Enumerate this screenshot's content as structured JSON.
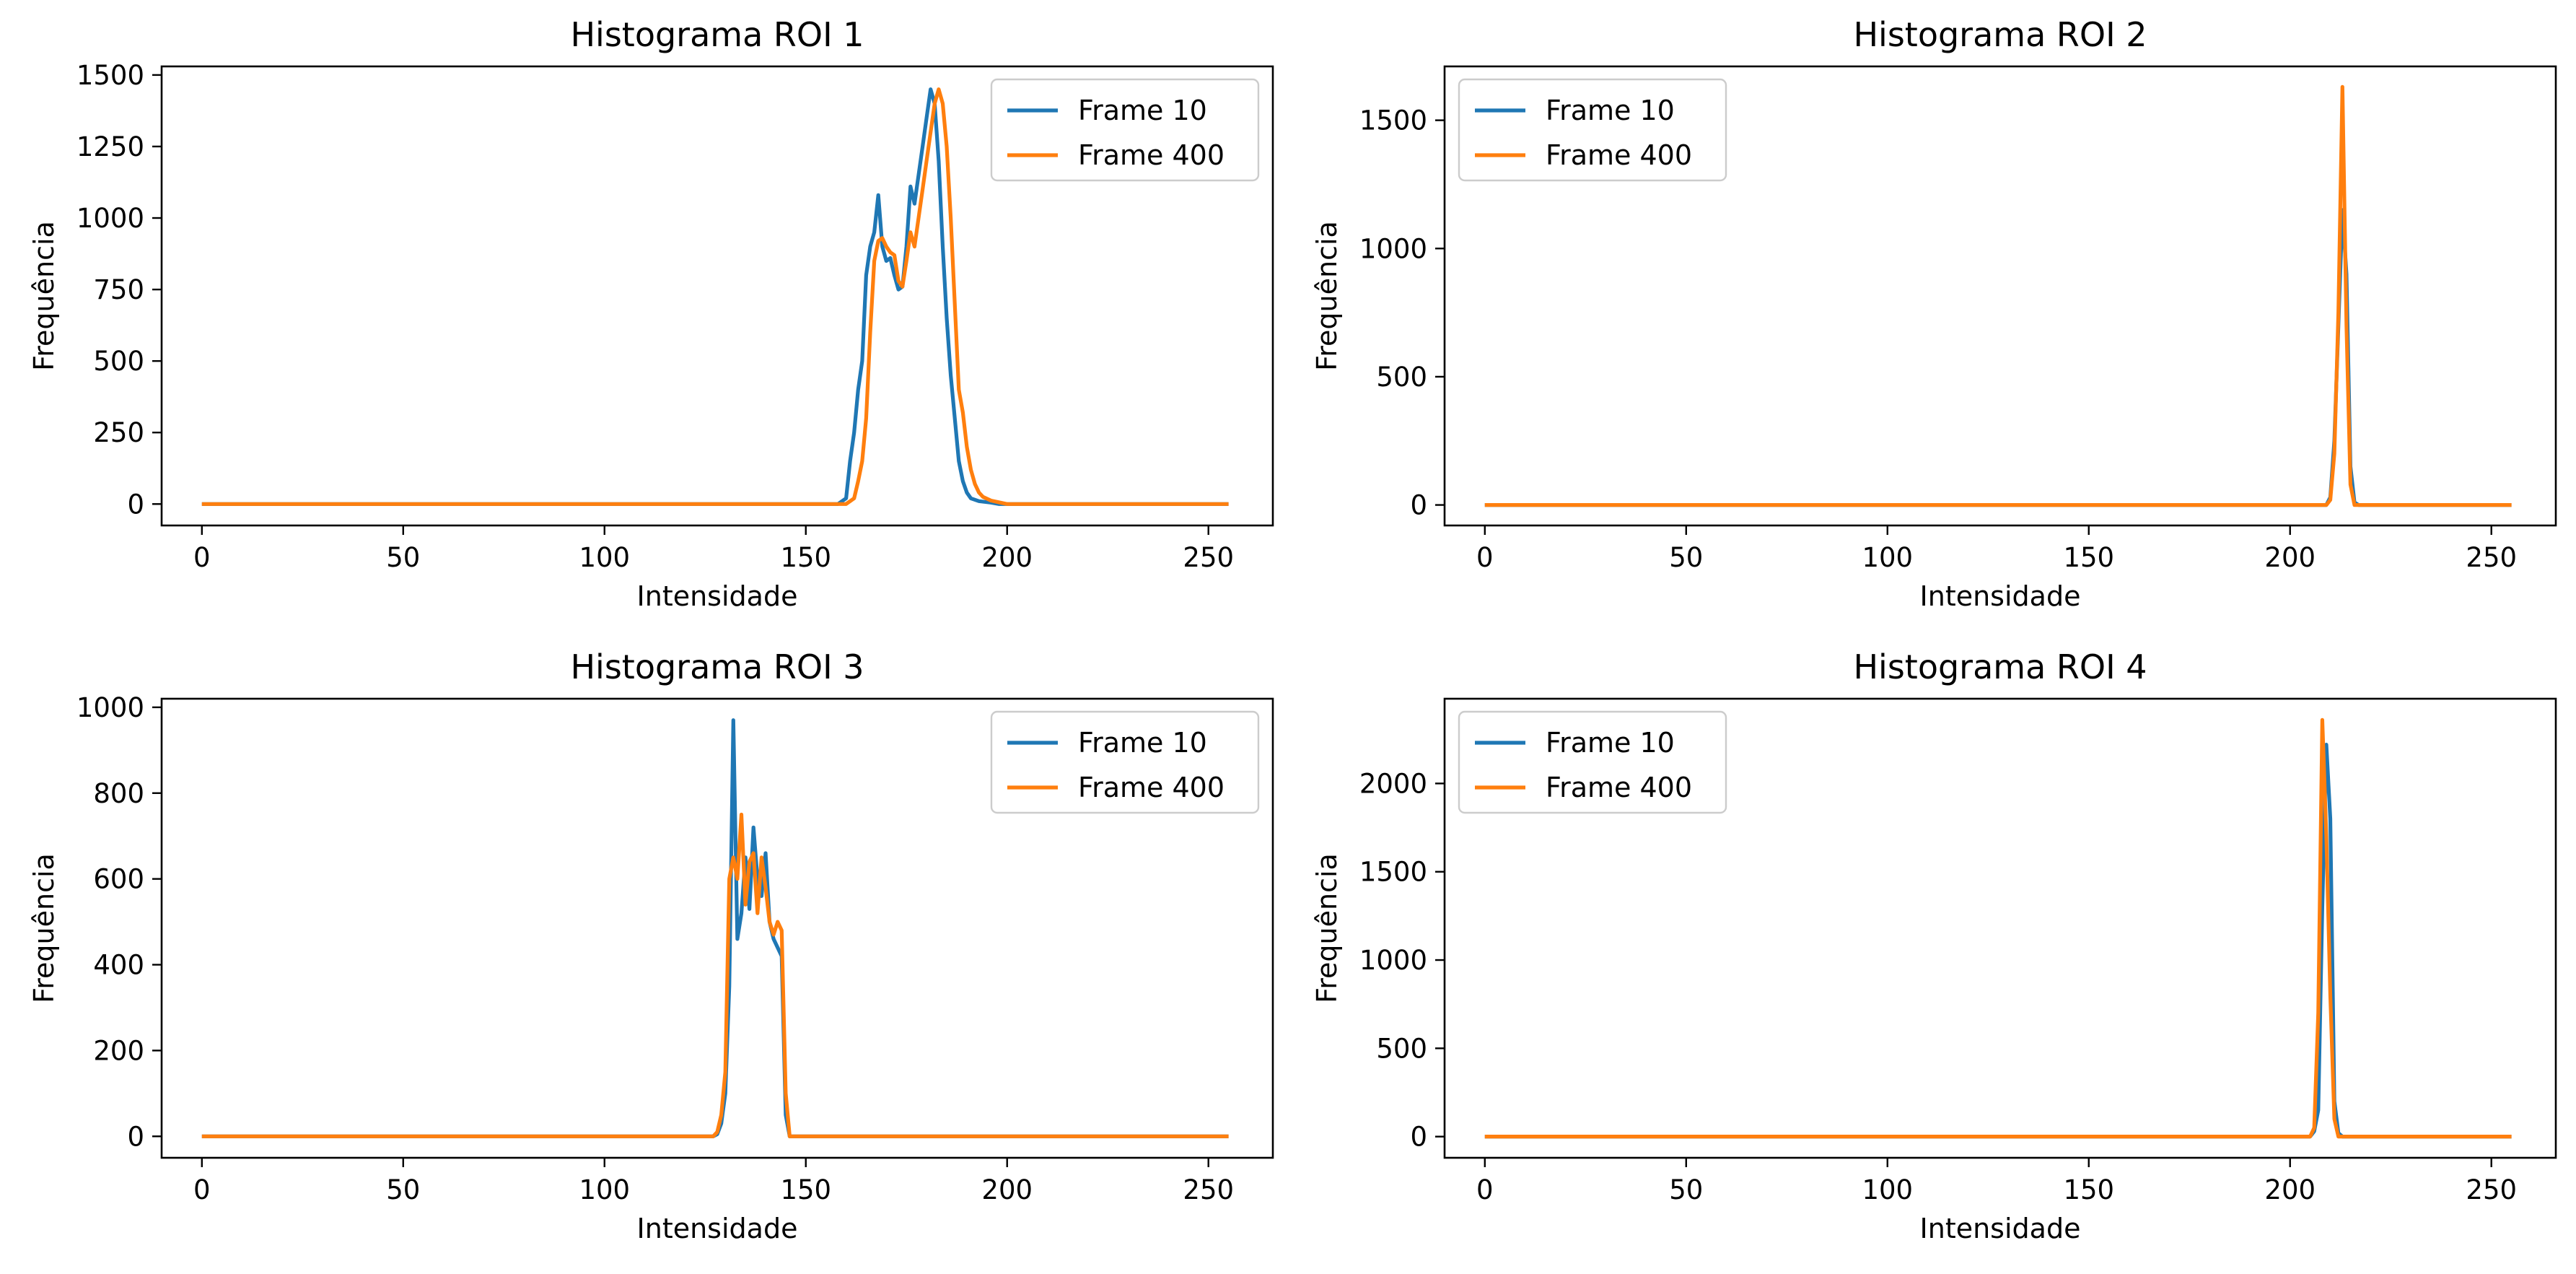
{
  "colors": {
    "frame10": "#1f77b4",
    "frame400": "#ff7f0e",
    "axes": "#000000",
    "legend_border": "#cccccc"
  },
  "chart_data": [
    {
      "type": "line",
      "title": "Histograma ROI 1",
      "xlabel": "Intensidade",
      "ylabel": "Frequência",
      "xlim": [
        -10,
        266
      ],
      "ylim": [
        -75,
        1530
      ],
      "xticks": [
        0,
        50,
        100,
        150,
        200,
        250
      ],
      "yticks": [
        0,
        250,
        500,
        750,
        1000,
        1250,
        1500
      ],
      "legend_position": "top-right",
      "series": [
        {
          "name": "Frame 10",
          "color": "#1f77b4",
          "points": [
            [
              0,
              0
            ],
            [
              158,
              0
            ],
            [
              160,
              20
            ],
            [
              161,
              150
            ],
            [
              162,
              250
            ],
            [
              163,
              400
            ],
            [
              164,
              500
            ],
            [
              165,
              800
            ],
            [
              166,
              900
            ],
            [
              167,
              950
            ],
            [
              168,
              1080
            ],
            [
              169,
              900
            ],
            [
              170,
              850
            ],
            [
              171,
              860
            ],
            [
              172,
              800
            ],
            [
              173,
              750
            ],
            [
              174,
              760
            ],
            [
              175,
              900
            ],
            [
              176,
              1110
            ],
            [
              177,
              1050
            ],
            [
              178,
              1150
            ],
            [
              179,
              1250
            ],
            [
              180,
              1350
            ],
            [
              181,
              1450
            ],
            [
              182,
              1400
            ],
            [
              183,
              1200
            ],
            [
              184,
              900
            ],
            [
              185,
              650
            ],
            [
              186,
              450
            ],
            [
              187,
              300
            ],
            [
              188,
              150
            ],
            [
              189,
              80
            ],
            [
              190,
              40
            ],
            [
              191,
              20
            ],
            [
              193,
              10
            ],
            [
              196,
              5
            ],
            [
              198,
              0
            ],
            [
              255,
              0
            ]
          ]
        },
        {
          "name": "Frame 400",
          "color": "#ff7f0e",
          "points": [
            [
              0,
              0
            ],
            [
              160,
              0
            ],
            [
              162,
              20
            ],
            [
              163,
              80
            ],
            [
              164,
              150
            ],
            [
              165,
              300
            ],
            [
              166,
              600
            ],
            [
              167,
              850
            ],
            [
              168,
              920
            ],
            [
              169,
              930
            ],
            [
              170,
              900
            ],
            [
              171,
              880
            ],
            [
              172,
              870
            ],
            [
              173,
              780
            ],
            [
              174,
              760
            ],
            [
              175,
              850
            ],
            [
              176,
              950
            ],
            [
              177,
              900
            ],
            [
              178,
              1000
            ],
            [
              179,
              1100
            ],
            [
              180,
              1200
            ],
            [
              181,
              1300
            ],
            [
              182,
              1400
            ],
            [
              183,
              1450
            ],
            [
              184,
              1400
            ],
            [
              185,
              1250
            ],
            [
              186,
              1000
            ],
            [
              187,
              700
            ],
            [
              188,
              400
            ],
            [
              189,
              320
            ],
            [
              190,
              200
            ],
            [
              191,
              120
            ],
            [
              192,
              70
            ],
            [
              193,
              40
            ],
            [
              194,
              25
            ],
            [
              196,
              12
            ],
            [
              198,
              6
            ],
            [
              200,
              0
            ],
            [
              255,
              0
            ]
          ]
        }
      ]
    },
    {
      "type": "line",
      "title": "Histograma ROI 2",
      "xlabel": "Intensidade",
      "ylabel": "Frequência",
      "xlim": [
        -10,
        266
      ],
      "ylim": [
        -80,
        1710
      ],
      "xticks": [
        0,
        50,
        100,
        150,
        200,
        250
      ],
      "yticks": [
        0,
        500,
        1000,
        1500
      ],
      "legend_position": "top-left",
      "series": [
        {
          "name": "Frame 10",
          "color": "#1f77b4",
          "points": [
            [
              0,
              0
            ],
            [
              209,
              0
            ],
            [
              210,
              30
            ],
            [
              211,
              250
            ],
            [
              212,
              700
            ],
            [
              213,
              1150
            ],
            [
              214,
              900
            ],
            [
              215,
              150
            ],
            [
              216,
              10
            ],
            [
              217,
              0
            ],
            [
              255,
              0
            ]
          ]
        },
        {
          "name": "Frame 400",
          "color": "#ff7f0e",
          "points": [
            [
              0,
              0
            ],
            [
              209,
              0
            ],
            [
              210,
              20
            ],
            [
              211,
              200
            ],
            [
              212,
              750
            ],
            [
              213,
              1630
            ],
            [
              214,
              700
            ],
            [
              215,
              80
            ],
            [
              216,
              0
            ],
            [
              255,
              0
            ]
          ]
        }
      ]
    },
    {
      "type": "line",
      "title": "Histograma ROI 3",
      "xlabel": "Intensidade",
      "ylabel": "Frequência",
      "xlim": [
        -10,
        266
      ],
      "ylim": [
        -50,
        1020
      ],
      "xticks": [
        0,
        50,
        100,
        150,
        200,
        250
      ],
      "yticks": [
        0,
        200,
        400,
        600,
        800,
        1000
      ],
      "legend_position": "top-right",
      "series": [
        {
          "name": "Frame 10",
          "color": "#1f77b4",
          "points": [
            [
              0,
              0
            ],
            [
              127,
              0
            ],
            [
              128,
              5
            ],
            [
              129,
              30
            ],
            [
              130,
              100
            ],
            [
              131,
              350
            ],
            [
              132,
              970
            ],
            [
              133,
              460
            ],
            [
              134,
              520
            ],
            [
              135,
              650
            ],
            [
              136,
              530
            ],
            [
              137,
              720
            ],
            [
              138,
              600
            ],
            [
              139,
              560
            ],
            [
              140,
              660
            ],
            [
              141,
              500
            ],
            [
              142,
              460
            ],
            [
              143,
              440
            ],
            [
              144,
              420
            ],
            [
              145,
              50
            ],
            [
              146,
              0
            ],
            [
              255,
              0
            ]
          ]
        },
        {
          "name": "Frame 400",
          "color": "#ff7f0e",
          "points": [
            [
              0,
              0
            ],
            [
              127,
              0
            ],
            [
              128,
              10
            ],
            [
              129,
              50
            ],
            [
              130,
              150
            ],
            [
              131,
              600
            ],
            [
              132,
              650
            ],
            [
              133,
              600
            ],
            [
              134,
              750
            ],
            [
              135,
              540
            ],
            [
              136,
              640
            ],
            [
              137,
              660
            ],
            [
              138,
              520
            ],
            [
              139,
              650
            ],
            [
              140,
              580
            ],
            [
              141,
              500
            ],
            [
              142,
              470
            ],
            [
              143,
              500
            ],
            [
              144,
              480
            ],
            [
              145,
              100
            ],
            [
              146,
              0
            ],
            [
              255,
              0
            ]
          ]
        }
      ]
    },
    {
      "type": "line",
      "title": "Histograma ROI 4",
      "xlabel": "Intensidade",
      "ylabel": "Frequência",
      "xlim": [
        -10,
        266
      ],
      "ylim": [
        -120,
        2480
      ],
      "xticks": [
        0,
        50,
        100,
        150,
        200,
        250
      ],
      "yticks": [
        0,
        500,
        1000,
        1500,
        2000
      ],
      "legend_position": "top-left",
      "series": [
        {
          "name": "Frame 10",
          "color": "#1f77b4",
          "points": [
            [
              0,
              0
            ],
            [
              205,
              0
            ],
            [
              206,
              30
            ],
            [
              207,
              150
            ],
            [
              208,
              1300
            ],
            [
              209,
              2220
            ],
            [
              210,
              1800
            ],
            [
              211,
              200
            ],
            [
              212,
              20
            ],
            [
              213,
              0
            ],
            [
              255,
              0
            ]
          ]
        },
        {
          "name": "Frame 400",
          "color": "#ff7f0e",
          "points": [
            [
              0,
              0
            ],
            [
              205,
              0
            ],
            [
              206,
              50
            ],
            [
              207,
              700
            ],
            [
              208,
              2360
            ],
            [
              209,
              1700
            ],
            [
              210,
              800
            ],
            [
              211,
              100
            ],
            [
              212,
              0
            ],
            [
              255,
              0
            ]
          ]
        }
      ]
    }
  ]
}
